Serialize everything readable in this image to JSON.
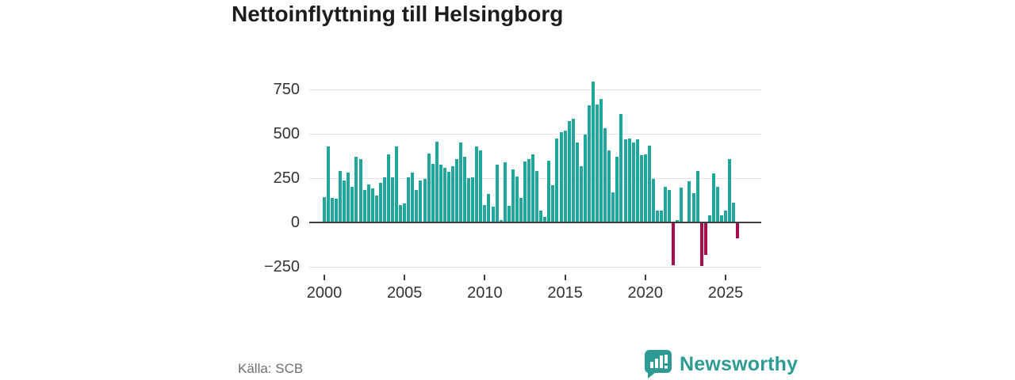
{
  "chart_data": {
    "type": "bar",
    "title": "Nettoinflyttning till Helsingborg",
    "xlabel": "",
    "ylabel": "",
    "frequency": "quarterly",
    "start_year": 2000,
    "values": [
      145,
      430,
      140,
      135,
      290,
      235,
      280,
      200,
      370,
      355,
      185,
      215,
      190,
      150,
      225,
      255,
      385,
      255,
      430,
      100,
      105,
      255,
      280,
      185,
      235,
      245,
      390,
      330,
      455,
      325,
      310,
      285,
      315,
      355,
      450,
      370,
      250,
      255,
      430,
      405,
      100,
      160,
      90,
      325,
      15,
      340,
      95,
      300,
      260,
      140,
      345,
      355,
      385,
      290,
      65,
      30,
      350,
      210,
      475,
      510,
      520,
      570,
      585,
      450,
      315,
      495,
      660,
      795,
      665,
      695,
      530,
      405,
      170,
      370,
      610,
      470,
      475,
      450,
      470,
      380,
      385,
      435,
      245,
      65,
      65,
      200,
      185,
      -240,
      15,
      195,
      5,
      230,
      165,
      290,
      -245,
      -185,
      40,
      275,
      200,
      40,
      65,
      355,
      110,
      -90
    ],
    "x_tick_years": [
      2000,
      2005,
      2010,
      2015,
      2020,
      2025
    ],
    "y_ticks": [
      750,
      500,
      250,
      0,
      -250
    ],
    "ylim": [
      -280,
      830
    ],
    "grid": true,
    "legend": false,
    "colors": {
      "positive": "#20a69a",
      "negative": "#a50d4d"
    }
  },
  "source": {
    "label": "Källa: SCB"
  },
  "brand": {
    "name": "Newsworthy",
    "color": "#2d9b93"
  }
}
